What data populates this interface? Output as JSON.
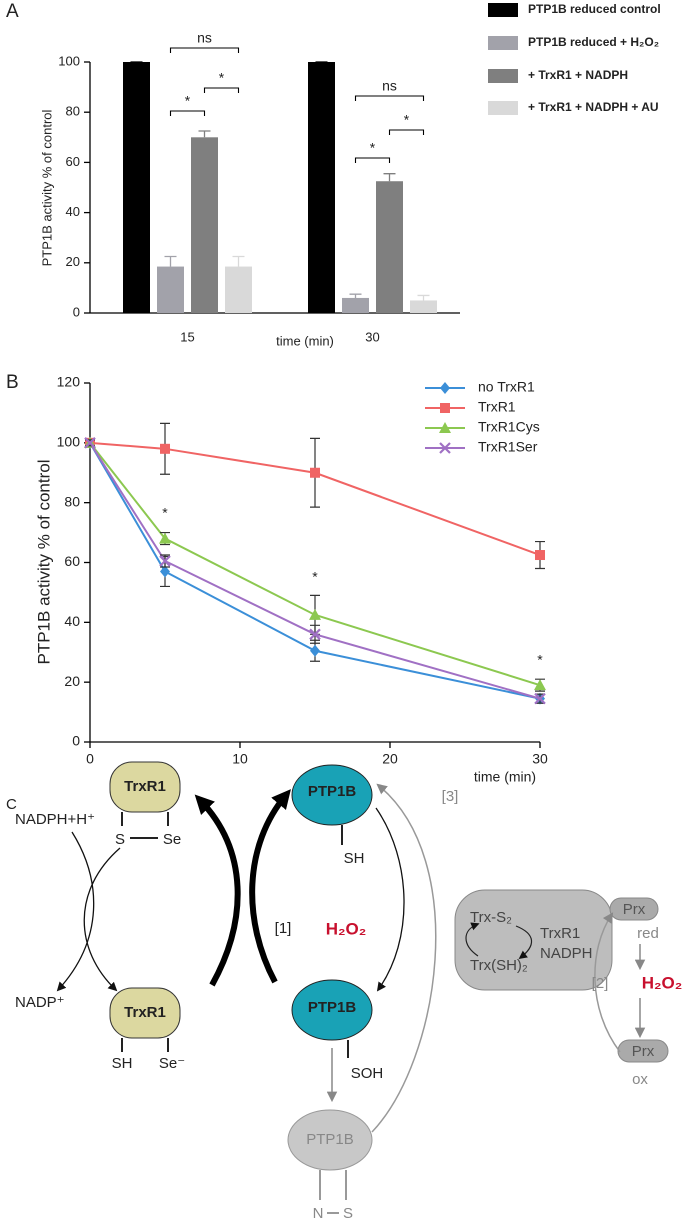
{
  "chart_data": [
    {
      "type": "bar",
      "panel": "A",
      "ylabel": "PTP1B activity % of control",
      "xlabel": "time (min)",
      "categories": [
        "15",
        "30"
      ],
      "series": [
        {
          "name": "PTP1B reduced control",
          "color": "#000000",
          "values": [
            100,
            100
          ],
          "errors": [
            0,
            0
          ]
        },
        {
          "name": "PTP1B reduced + H₂O₂",
          "color": "#a2a2aa",
          "values": [
            18.5,
            6
          ],
          "errors": [
            4,
            1.5
          ]
        },
        {
          "name": "+ TrxR1 + NADPH",
          "color": "#7f7f7f",
          "values": [
            70,
            52.5
          ],
          "errors": [
            2.5,
            3
          ]
        },
        {
          "name": "+ TrxR1 + NADPH + AU",
          "color": "#d9d9d9",
          "values": [
            18.5,
            5
          ],
          "errors": [
            4,
            2
          ]
        }
      ],
      "ylim": [
        0,
        100
      ],
      "yticks": [
        0,
        20,
        40,
        60,
        80,
        100
      ],
      "annotations": [
        "ns",
        "*",
        "*",
        "ns",
        "*",
        "*"
      ],
      "legend": "outside right"
    },
    {
      "type": "line",
      "panel": "B",
      "ylabel": "PTP1B activity % of control",
      "xlabel": "time (min)",
      "x": [
        0,
        5,
        15,
        30
      ],
      "series": [
        {
          "name": "no TrxR1",
          "color": "#3b8fd8",
          "marker": "diamond",
          "values": [
            100,
            57,
            30.5,
            14.5
          ],
          "errors": [
            1,
            5,
            3.5,
            1.5
          ]
        },
        {
          "name": "TrxR1",
          "color": "#f06464",
          "marker": "square",
          "values": [
            100,
            98,
            90,
            62.5
          ],
          "errors": [
            1,
            8.5,
            11.5,
            4.5
          ]
        },
        {
          "name": "TrxR1Cys",
          "color": "#8cc850",
          "marker": "triangle",
          "values": [
            100,
            68,
            42.5,
            19
          ],
          "errors": [
            1,
            2,
            6.5,
            2
          ]
        },
        {
          "name": "TrxR1Ser",
          "color": "#a070c4",
          "marker": "x",
          "values": [
            100,
            60.5,
            36,
            14.5
          ],
          "errors": [
            1,
            2,
            3,
            1.5
          ]
        }
      ],
      "xlim": [
        0,
        30
      ],
      "xticks": [
        0,
        10,
        20,
        30
      ],
      "ylim": [
        0,
        120
      ],
      "yticks": [
        0,
        20,
        40,
        60,
        80,
        100,
        120
      ],
      "annotations": [
        "*",
        "*",
        "*"
      ],
      "legend": "upper right"
    }
  ],
  "diagram": {
    "panel": "C",
    "trxr1_oxidized": {
      "name": "TrxR1",
      "thiol": "S",
      "selenol": "Se"
    },
    "trxr1_reduced": {
      "name": "TrxR1",
      "thiol": "SH",
      "selenol": "Se⁻"
    },
    "nadph": "NADPH+H⁺",
    "nadp": "NADP⁺",
    "ptp1b_reduced": {
      "name": "PTP1B",
      "group": "SH"
    },
    "ptp1b_sulfenic": {
      "name": "PTP1B",
      "group": "SOH"
    },
    "ptp1b_sulfenamide": {
      "name": "PTP1B",
      "left": "N",
      "right": "S"
    },
    "step1": "[1]",
    "step2": "[2]",
    "step3": "[3]",
    "h2o2_ptp1b": "H₂O₂",
    "trx_system": {
      "oxidized": "Trx-S₂",
      "reduced": "Trx(SH)₂",
      "enzyme": "TrxR1",
      "cofactor": "NADPH"
    },
    "prx_red": {
      "name": "Prx",
      "state": "red"
    },
    "h2o2_prx": "H₂O₂",
    "prx_ox": {
      "name": "Prx",
      "state": "ox"
    }
  }
}
